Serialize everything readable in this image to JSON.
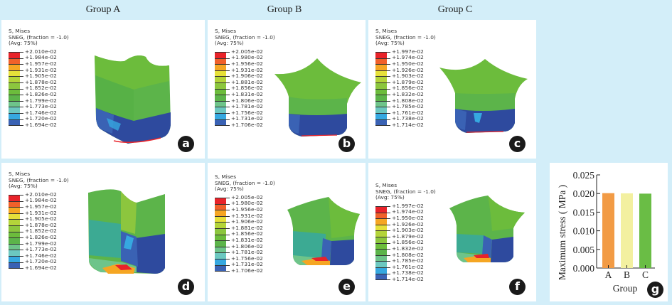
{
  "figure": {
    "column_titles": [
      "Group A",
      "Group B",
      "Group C"
    ],
    "colors": {
      "background": "#d3eef9",
      "panel": "#ffffff",
      "badge": "#1a1a1a"
    },
    "contour_band_colors": [
      "#e8232a",
      "#f0602a",
      "#f5a623",
      "#e6e03a",
      "#b4d43a",
      "#8cc63e",
      "#6cbc3c",
      "#5cb44a",
      "#6ec48a",
      "#6cc8c0",
      "#36a8e0",
      "#3a62b4",
      "#2e4a9e"
    ],
    "panels": [
      {
        "badge": "a",
        "group": "A",
        "legend": {
          "title": "S, Mises",
          "subtitle": "SNEG, (fraction = -1.0)",
          "avg": "(Avg: 75%)",
          "values": [
            "+2.010e-02",
            "+1.984e-02",
            "+1.957e-02",
            "+1.931e-02",
            "+1.905e-02",
            "+1.878e-02",
            "+1.852e-02",
            "+1.826e-02",
            "+1.799e-02",
            "+1.773e-02",
            "+1.746e-02",
            "+1.720e-02",
            "+1.694e-02"
          ]
        }
      },
      {
        "badge": "b",
        "group": "B",
        "legend": {
          "title": "S, Mises",
          "subtitle": "SNEG, (fraction = -1.0)",
          "avg": "(Avg: 75%)",
          "values": [
            "+2.005e-02",
            "+1.980e-02",
            "+1.956e-02",
            "+1.931e-02",
            "+1.906e-02",
            "+1.881e-02",
            "+1.856e-02",
            "+1.831e-02",
            "+1.806e-02",
            "+1.781e-02",
            "+1.756e-02",
            "+1.731e-02",
            "+1.706e-02"
          ]
        }
      },
      {
        "badge": "c",
        "group": "C",
        "legend": {
          "title": "S, Mises",
          "subtitle": "SNEG, (fraction = -1.0)",
          "avg": "(Avg: 75%)",
          "values": [
            "+1.997e-02",
            "+1.974e-02",
            "+1.950e-02",
            "+1.926e-02",
            "+1.903e-02",
            "+1.879e-02",
            "+1.856e-02",
            "+1.832e-02",
            "+1.808e-02",
            "+1.785e-02",
            "+1.761e-02",
            "+1.738e-02",
            "+1.714e-02"
          ]
        }
      },
      {
        "badge": "d",
        "group": "A",
        "legend": {
          "title": "S, Mises",
          "subtitle": "SNEG, (fraction = -1.0)",
          "avg": "(Avg: 75%)",
          "values": [
            "+2.010e-02",
            "+1.984e-02",
            "+1.957e-02",
            "+1.931e-02",
            "+1.905e-02",
            "+1.878e-02",
            "+1.852e-02",
            "+1.826e-02",
            "+1.799e-02",
            "+1.773e-02",
            "+1.746e-02",
            "+1.720e-02",
            "+1.694e-02"
          ]
        }
      },
      {
        "badge": "e",
        "group": "B",
        "legend": {
          "title": "S, Mises",
          "subtitle": "SNEG, (fraction = -1.0)",
          "avg": "(Avg: 75%)",
          "values": [
            "+2.005e-02",
            "+1.980e-02",
            "+1.956e-02",
            "+1.931e-02",
            "+1.906e-02",
            "+1.881e-02",
            "+1.856e-02",
            "+1.831e-02",
            "+1.806e-02",
            "+1.781e-02",
            "+1.756e-02",
            "+1.731e-02",
            "+1.706e-02"
          ]
        }
      },
      {
        "badge": "f",
        "group": "C",
        "legend": {
          "title": "S, Mises",
          "subtitle": "SNEG, (fraction = -1.0)",
          "avg": "(Avg: 75%)",
          "values": [
            "+1.997e-02",
            "+1.974e-02",
            "+1.950e-02",
            "+1.926e-02",
            "+1.903e-02",
            "+1.879e-02",
            "+1.856e-02",
            "+1.832e-02",
            "+1.808e-02",
            "+1.785e-02",
            "+1.761e-02",
            "+1.738e-02",
            "+1.714e-02"
          ]
        }
      }
    ],
    "chart_badge": "g"
  },
  "chart_data": {
    "type": "bar",
    "title": "",
    "categories": [
      "A",
      "B",
      "C"
    ],
    "values": [
      0.0201,
      0.02005,
      0.01997
    ],
    "bar_colors": [
      "#f29b45",
      "#f3f0a0",
      "#6abd45"
    ],
    "xlabel": "Group",
    "ylabel": "Maximum stress ( MPa )",
    "ylim": [
      0,
      0.025
    ],
    "yticks": [
      0.0,
      0.005,
      0.01,
      0.015,
      0.02,
      0.025
    ],
    "ytick_labels": [
      "0.000",
      "0.005",
      "0.010",
      "0.015",
      "0.020",
      "0.025"
    ],
    "grid": false,
    "legend": "none"
  }
}
